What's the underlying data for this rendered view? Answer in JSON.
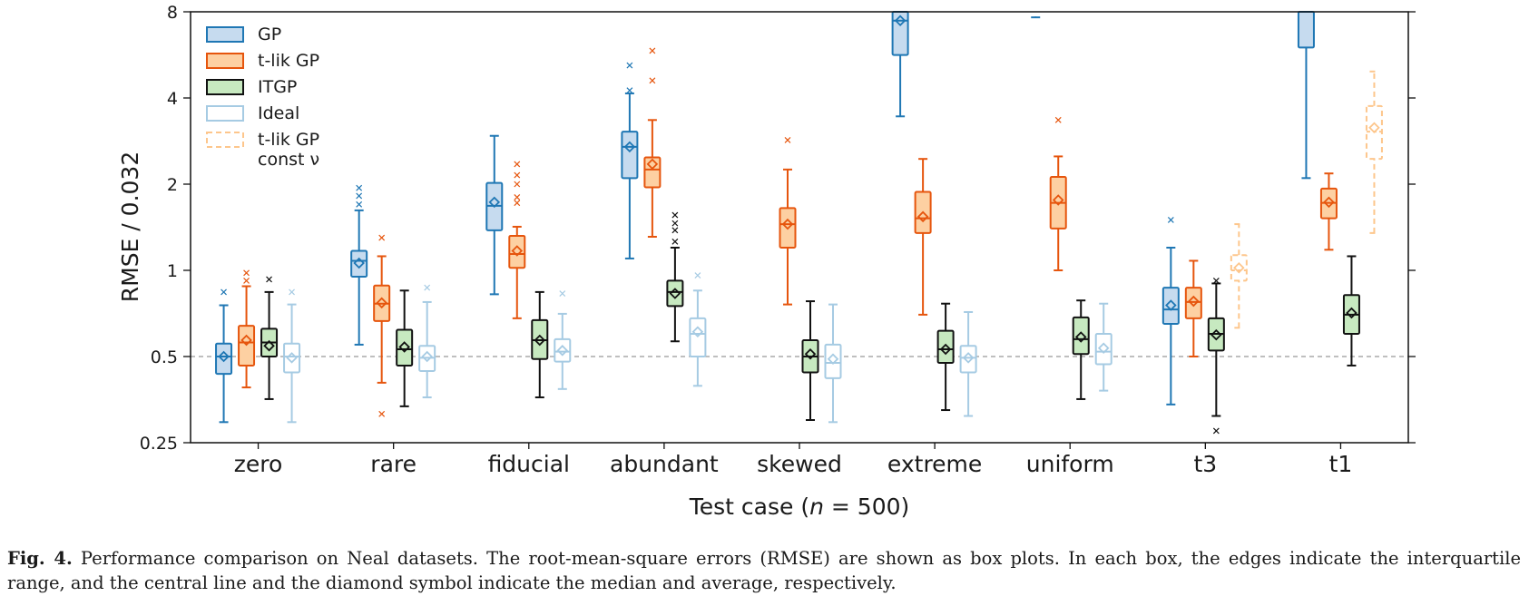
{
  "caption": {
    "label": "Fig. 4.",
    "text": "Performance comparison on Neal datasets. The root-mean-square errors (RMSE) are shown as box plots. In each box, the edges indicate the interquartile range, and the central line and the diamond symbol indicate the median and average, respectively."
  },
  "chart_data": {
    "type": "box",
    "xlabel": "Test case (n = 500)",
    "ylabel": "RMSE / 0.032",
    "yscale": "log2",
    "ylim": [
      0.25,
      8
    ],
    "yticks": [
      "0.25",
      "0.5",
      "1",
      "2",
      "4",
      "8"
    ],
    "reference_line": {
      "y": 0.5,
      "style": "dashed",
      "color": "#999999"
    },
    "legend_position": "top-left",
    "categories": [
      "zero",
      "rare",
      "fiducial",
      "abundant",
      "skewed",
      "extreme",
      "uniform",
      "t3",
      "t1"
    ],
    "series": [
      {
        "name": "GP",
        "color": "#1f77b4",
        "fill": "#c6dbef",
        "dashed": false,
        "boxes": [
          {
            "cat": "zero",
            "wl": 0.295,
            "q1": 0.435,
            "med": 0.5,
            "q3": 0.555,
            "wh": 0.755,
            "mean": 0.5,
            "fliers": [
              0.84
            ]
          },
          {
            "cat": "rare",
            "wl": 0.55,
            "q1": 0.95,
            "med": 1.08,
            "q3": 1.17,
            "wh": 1.62,
            "mean": 1.06,
            "fliers": [
              1.7,
              1.82,
              1.94
            ]
          },
          {
            "cat": "fiducial",
            "wl": 0.825,
            "q1": 1.38,
            "med": 1.68,
            "q3": 2.02,
            "wh": 2.95,
            "mean": 1.73,
            "fliers": []
          },
          {
            "cat": "abundant",
            "wl": 1.1,
            "q1": 2.1,
            "med": 2.7,
            "q3": 3.05,
            "wh": 4.15,
            "mean": 2.7,
            "fliers": [
              4.25,
              5.2
            ]
          },
          {
            "cat": "extreme",
            "wl": 3.45,
            "q1": 5.65,
            "med": 7.45,
            "q3": 8.0,
            "wh": null,
            "mean": 7.45,
            "fliers": []
          },
          {
            "cat": "uniform",
            "wl": 7.65,
            "q1": null,
            "med": null,
            "q3": null,
            "wh": null,
            "mean": null,
            "fliers": []
          },
          {
            "cat": "t3",
            "wl": 0.34,
            "q1": 0.65,
            "med": 0.73,
            "q3": 0.87,
            "wh": 1.2,
            "mean": 0.755,
            "fliers": [
              1.5
            ]
          },
          {
            "cat": "t1",
            "wl": 2.1,
            "q1": 6.0,
            "med": 8.0,
            "q3": 8.0,
            "wh": null,
            "mean": null,
            "fliers": []
          }
        ]
      },
      {
        "name": "t-lik GP",
        "color": "#e6550d",
        "fill": "#fdd0a2",
        "dashed": false,
        "boxes": [
          {
            "cat": "zero",
            "wl": 0.39,
            "q1": 0.465,
            "med": 0.56,
            "q3": 0.64,
            "wh": 0.88,
            "mean": 0.57,
            "fliers": [
              0.92,
              0.98
            ]
          },
          {
            "cat": "rare",
            "wl": 0.405,
            "q1": 0.665,
            "med": 0.765,
            "q3": 0.885,
            "wh": 1.12,
            "mean": 0.77,
            "fliers": [
              1.3,
              0.315
            ]
          },
          {
            "cat": "fiducial",
            "wl": 0.68,
            "q1": 1.02,
            "med": 1.14,
            "q3": 1.32,
            "wh": 1.42,
            "mean": 1.17,
            "fliers": [
              1.72,
              1.8,
              2.0,
              2.15,
              2.35
            ]
          },
          {
            "cat": "abundant",
            "wl": 1.31,
            "q1": 1.95,
            "med": 2.25,
            "q3": 2.48,
            "wh": 3.35,
            "mean": 2.35,
            "fliers": [
              4.6,
              5.85
            ]
          },
          {
            "cat": "skewed",
            "wl": 0.76,
            "q1": 1.2,
            "med": 1.45,
            "q3": 1.65,
            "wh": 2.25,
            "mean": 1.45,
            "fliers": [
              2.85
            ]
          },
          {
            "cat": "extreme",
            "wl": 0.7,
            "q1": 1.35,
            "med": 1.52,
            "q3": 1.88,
            "wh": 2.45,
            "mean": 1.54,
            "fliers": []
          },
          {
            "cat": "uniform",
            "wl": 1.0,
            "q1": 1.4,
            "med": 1.72,
            "q3": 2.12,
            "wh": 2.5,
            "mean": 1.76,
            "fliers": [
              3.35
            ]
          },
          {
            "cat": "t3",
            "wl": 0.5,
            "q1": 0.68,
            "med": 0.775,
            "q3": 0.87,
            "wh": 1.08,
            "mean": 0.78,
            "fliers": []
          },
          {
            "cat": "t1",
            "wl": 1.18,
            "q1": 1.52,
            "med": 1.72,
            "q3": 1.93,
            "wh": 2.18,
            "mean": 1.73,
            "fliers": []
          }
        ]
      },
      {
        "name": "ITGP",
        "color": "#111111",
        "fill": "#c7e9c0",
        "dashed": false,
        "boxes": [
          {
            "cat": "zero",
            "wl": 0.355,
            "q1": 0.5,
            "med": 0.56,
            "q3": 0.625,
            "wh": 0.84,
            "mean": 0.545,
            "fliers": [
              0.93
            ]
          },
          {
            "cat": "rare",
            "wl": 0.335,
            "q1": 0.465,
            "med": 0.53,
            "q3": 0.62,
            "wh": 0.85,
            "mean": 0.54,
            "fliers": []
          },
          {
            "cat": "fiducial",
            "wl": 0.36,
            "q1": 0.49,
            "med": 0.57,
            "q3": 0.67,
            "wh": 0.84,
            "mean": 0.57,
            "fliers": []
          },
          {
            "cat": "abundant",
            "wl": 0.565,
            "q1": 0.75,
            "med": 0.84,
            "q3": 0.92,
            "wh": 1.2,
            "mean": 0.83,
            "fliers": [
              1.26,
              1.38,
              1.46,
              1.56
            ]
          },
          {
            "cat": "skewed",
            "wl": 0.3,
            "q1": 0.44,
            "med": 0.5,
            "q3": 0.57,
            "wh": 0.78,
            "mean": 0.51,
            "fliers": []
          },
          {
            "cat": "extreme",
            "wl": 0.325,
            "q1": 0.475,
            "med": 0.53,
            "q3": 0.615,
            "wh": 0.765,
            "mean": 0.53,
            "fliers": []
          },
          {
            "cat": "uniform",
            "wl": 0.355,
            "q1": 0.51,
            "med": 0.575,
            "q3": 0.685,
            "wh": 0.785,
            "mean": 0.585,
            "fliers": []
          },
          {
            "cat": "t3",
            "wl": 0.31,
            "q1": 0.525,
            "med": 0.6,
            "q3": 0.68,
            "wh": 0.9,
            "mean": 0.595,
            "fliers": [
              0.275,
              0.92
            ]
          },
          {
            "cat": "t1",
            "wl": 0.465,
            "q1": 0.6,
            "med": 0.7,
            "q3": 0.82,
            "wh": 1.12,
            "mean": 0.71,
            "fliers": []
          }
        ]
      },
      {
        "name": "Ideal",
        "color": "#a6cbe3",
        "fill": "#ffffff",
        "dashed": false,
        "boxes": [
          {
            "cat": "zero",
            "wl": 0.295,
            "q1": 0.44,
            "med": 0.5,
            "q3": 0.555,
            "wh": 0.76,
            "mean": 0.495,
            "fliers": [
              0.84
            ]
          },
          {
            "cat": "rare",
            "wl": 0.36,
            "q1": 0.445,
            "med": 0.495,
            "q3": 0.545,
            "wh": 0.775,
            "mean": 0.5,
            "fliers": [
              0.87
            ]
          },
          {
            "cat": "fiducial",
            "wl": 0.385,
            "q1": 0.48,
            "med": 0.52,
            "q3": 0.575,
            "wh": 0.705,
            "mean": 0.525,
            "fliers": [
              0.83
            ]
          },
          {
            "cat": "abundant",
            "wl": 0.395,
            "q1": 0.5,
            "med": 0.6,
            "q3": 0.68,
            "wh": 0.85,
            "mean": 0.61,
            "fliers": [
              0.96
            ]
          },
          {
            "cat": "skewed",
            "wl": 0.295,
            "q1": 0.42,
            "med": 0.475,
            "q3": 0.55,
            "wh": 0.76,
            "mean": 0.49,
            "fliers": []
          },
          {
            "cat": "extreme",
            "wl": 0.31,
            "q1": 0.44,
            "med": 0.495,
            "q3": 0.545,
            "wh": 0.715,
            "mean": 0.495,
            "fliers": []
          },
          {
            "cat": "uniform",
            "wl": 0.38,
            "q1": 0.47,
            "med": 0.52,
            "q3": 0.6,
            "wh": 0.765,
            "mean": 0.535,
            "fliers": []
          },
          {
            "cat": "t1",
            "wl": null,
            "q1": null,
            "med": null,
            "q3": null,
            "wh": null,
            "mean": null,
            "fliers": []
          }
        ]
      },
      {
        "name": "t-lik GP const ν",
        "color": "#fdc68c",
        "fill": "#ffffff",
        "dashed": true,
        "boxes": [
          {
            "cat": "t3",
            "wl": 0.63,
            "q1": 0.92,
            "med": 1.0,
            "q3": 1.13,
            "wh": 1.45,
            "mean": 1.02,
            "fliers": []
          },
          {
            "cat": "t1",
            "wl": 1.35,
            "q1": 2.45,
            "med": 3.05,
            "q3": 3.75,
            "wh": 4.95,
            "mean": 3.15,
            "fliers": []
          }
        ]
      }
    ]
  },
  "legend": [
    {
      "label": "GP",
      "color": "#1f77b4",
      "fill": "#c6dbef",
      "dashed": false
    },
    {
      "label": "t-lik GP",
      "color": "#e6550d",
      "fill": "#fdd0a2",
      "dashed": false
    },
    {
      "label": "ITGP",
      "color": "#111111",
      "fill": "#c7e9c0",
      "dashed": false
    },
    {
      "label": "Ideal",
      "color": "#a6cbe3",
      "fill": "#ffffff",
      "dashed": false
    },
    {
      "label": "t-lik GP",
      "sublabel": "const ν",
      "color": "#fdc68c",
      "fill": "#ffffff",
      "dashed": true
    }
  ]
}
